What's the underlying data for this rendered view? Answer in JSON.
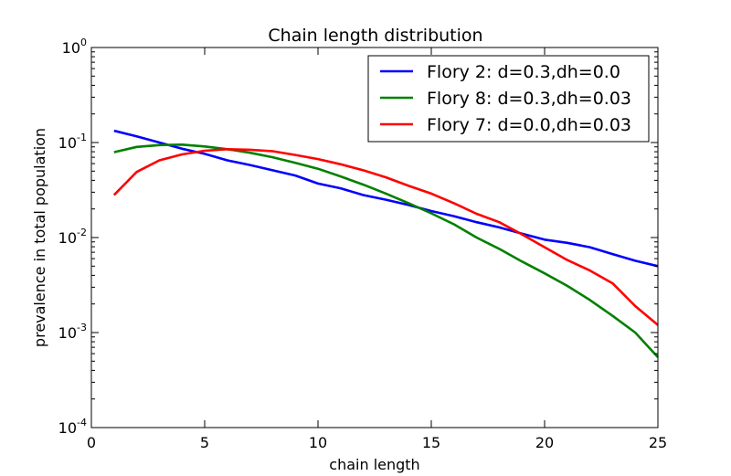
{
  "chart_data": {
    "type": "line",
    "title": "Chain length distribution",
    "xlabel": "chain length",
    "ylabel": "prevalence in total population",
    "xlim": [
      0,
      25
    ],
    "ylim": [
      0.0001,
      1
    ],
    "yscale": "log",
    "grid": false,
    "legend_position": "top-right",
    "x_ticks": [
      {
        "value": 0,
        "label": "0"
      },
      {
        "value": 5,
        "label": "5"
      },
      {
        "value": 10,
        "label": "10"
      },
      {
        "value": 15,
        "label": "15"
      },
      {
        "value": 20,
        "label": "20"
      },
      {
        "value": 25,
        "label": "25"
      }
    ],
    "y_ticks": [
      {
        "value": 1,
        "base": "10",
        "exp": "0"
      },
      {
        "value": 0.1,
        "base": "10",
        "exp": "-1"
      },
      {
        "value": 0.01,
        "base": "10",
        "exp": "-2"
      },
      {
        "value": 0.001,
        "base": "10",
        "exp": "-3"
      },
      {
        "value": 0.0001,
        "base": "10",
        "exp": "-4"
      }
    ],
    "x": [
      1,
      2,
      3,
      4,
      5,
      6,
      7,
      8,
      9,
      10,
      11,
      12,
      13,
      14,
      15,
      16,
      17,
      18,
      19,
      20,
      21,
      22,
      23,
      24,
      25
    ],
    "series": [
      {
        "name": "Flory 2: d=0.3,dh=0.0",
        "color": "#0000ff",
        "values": [
          0.133,
          0.116,
          0.1,
          0.086,
          0.076,
          0.065,
          0.058,
          0.051,
          0.045,
          0.037,
          0.033,
          0.028,
          0.025,
          0.022,
          0.019,
          0.0168,
          0.0145,
          0.0128,
          0.011,
          0.0095,
          0.0088,
          0.0079,
          0.0067,
          0.0057,
          0.005
        ]
      },
      {
        "name": "Flory 8: d=0.3,dh=0.03",
        "color": "#008000",
        "values": [
          0.079,
          0.09,
          0.094,
          0.095,
          0.091,
          0.085,
          0.078,
          0.07,
          0.061,
          0.053,
          0.044,
          0.036,
          0.029,
          0.023,
          0.018,
          0.0138,
          0.01,
          0.0076,
          0.0056,
          0.0042,
          0.0031,
          0.0022,
          0.0015,
          0.001,
          0.00055
        ]
      },
      {
        "name": "Flory 7: d=0.0,dh=0.03",
        "color": "#ff0000",
        "values": [
          0.028,
          0.049,
          0.065,
          0.075,
          0.082,
          0.085,
          0.084,
          0.081,
          0.074,
          0.067,
          0.059,
          0.051,
          0.043,
          0.035,
          0.029,
          0.023,
          0.0178,
          0.0145,
          0.0108,
          0.0079,
          0.0058,
          0.0045,
          0.0033,
          0.0019,
          0.0012
        ]
      }
    ]
  }
}
